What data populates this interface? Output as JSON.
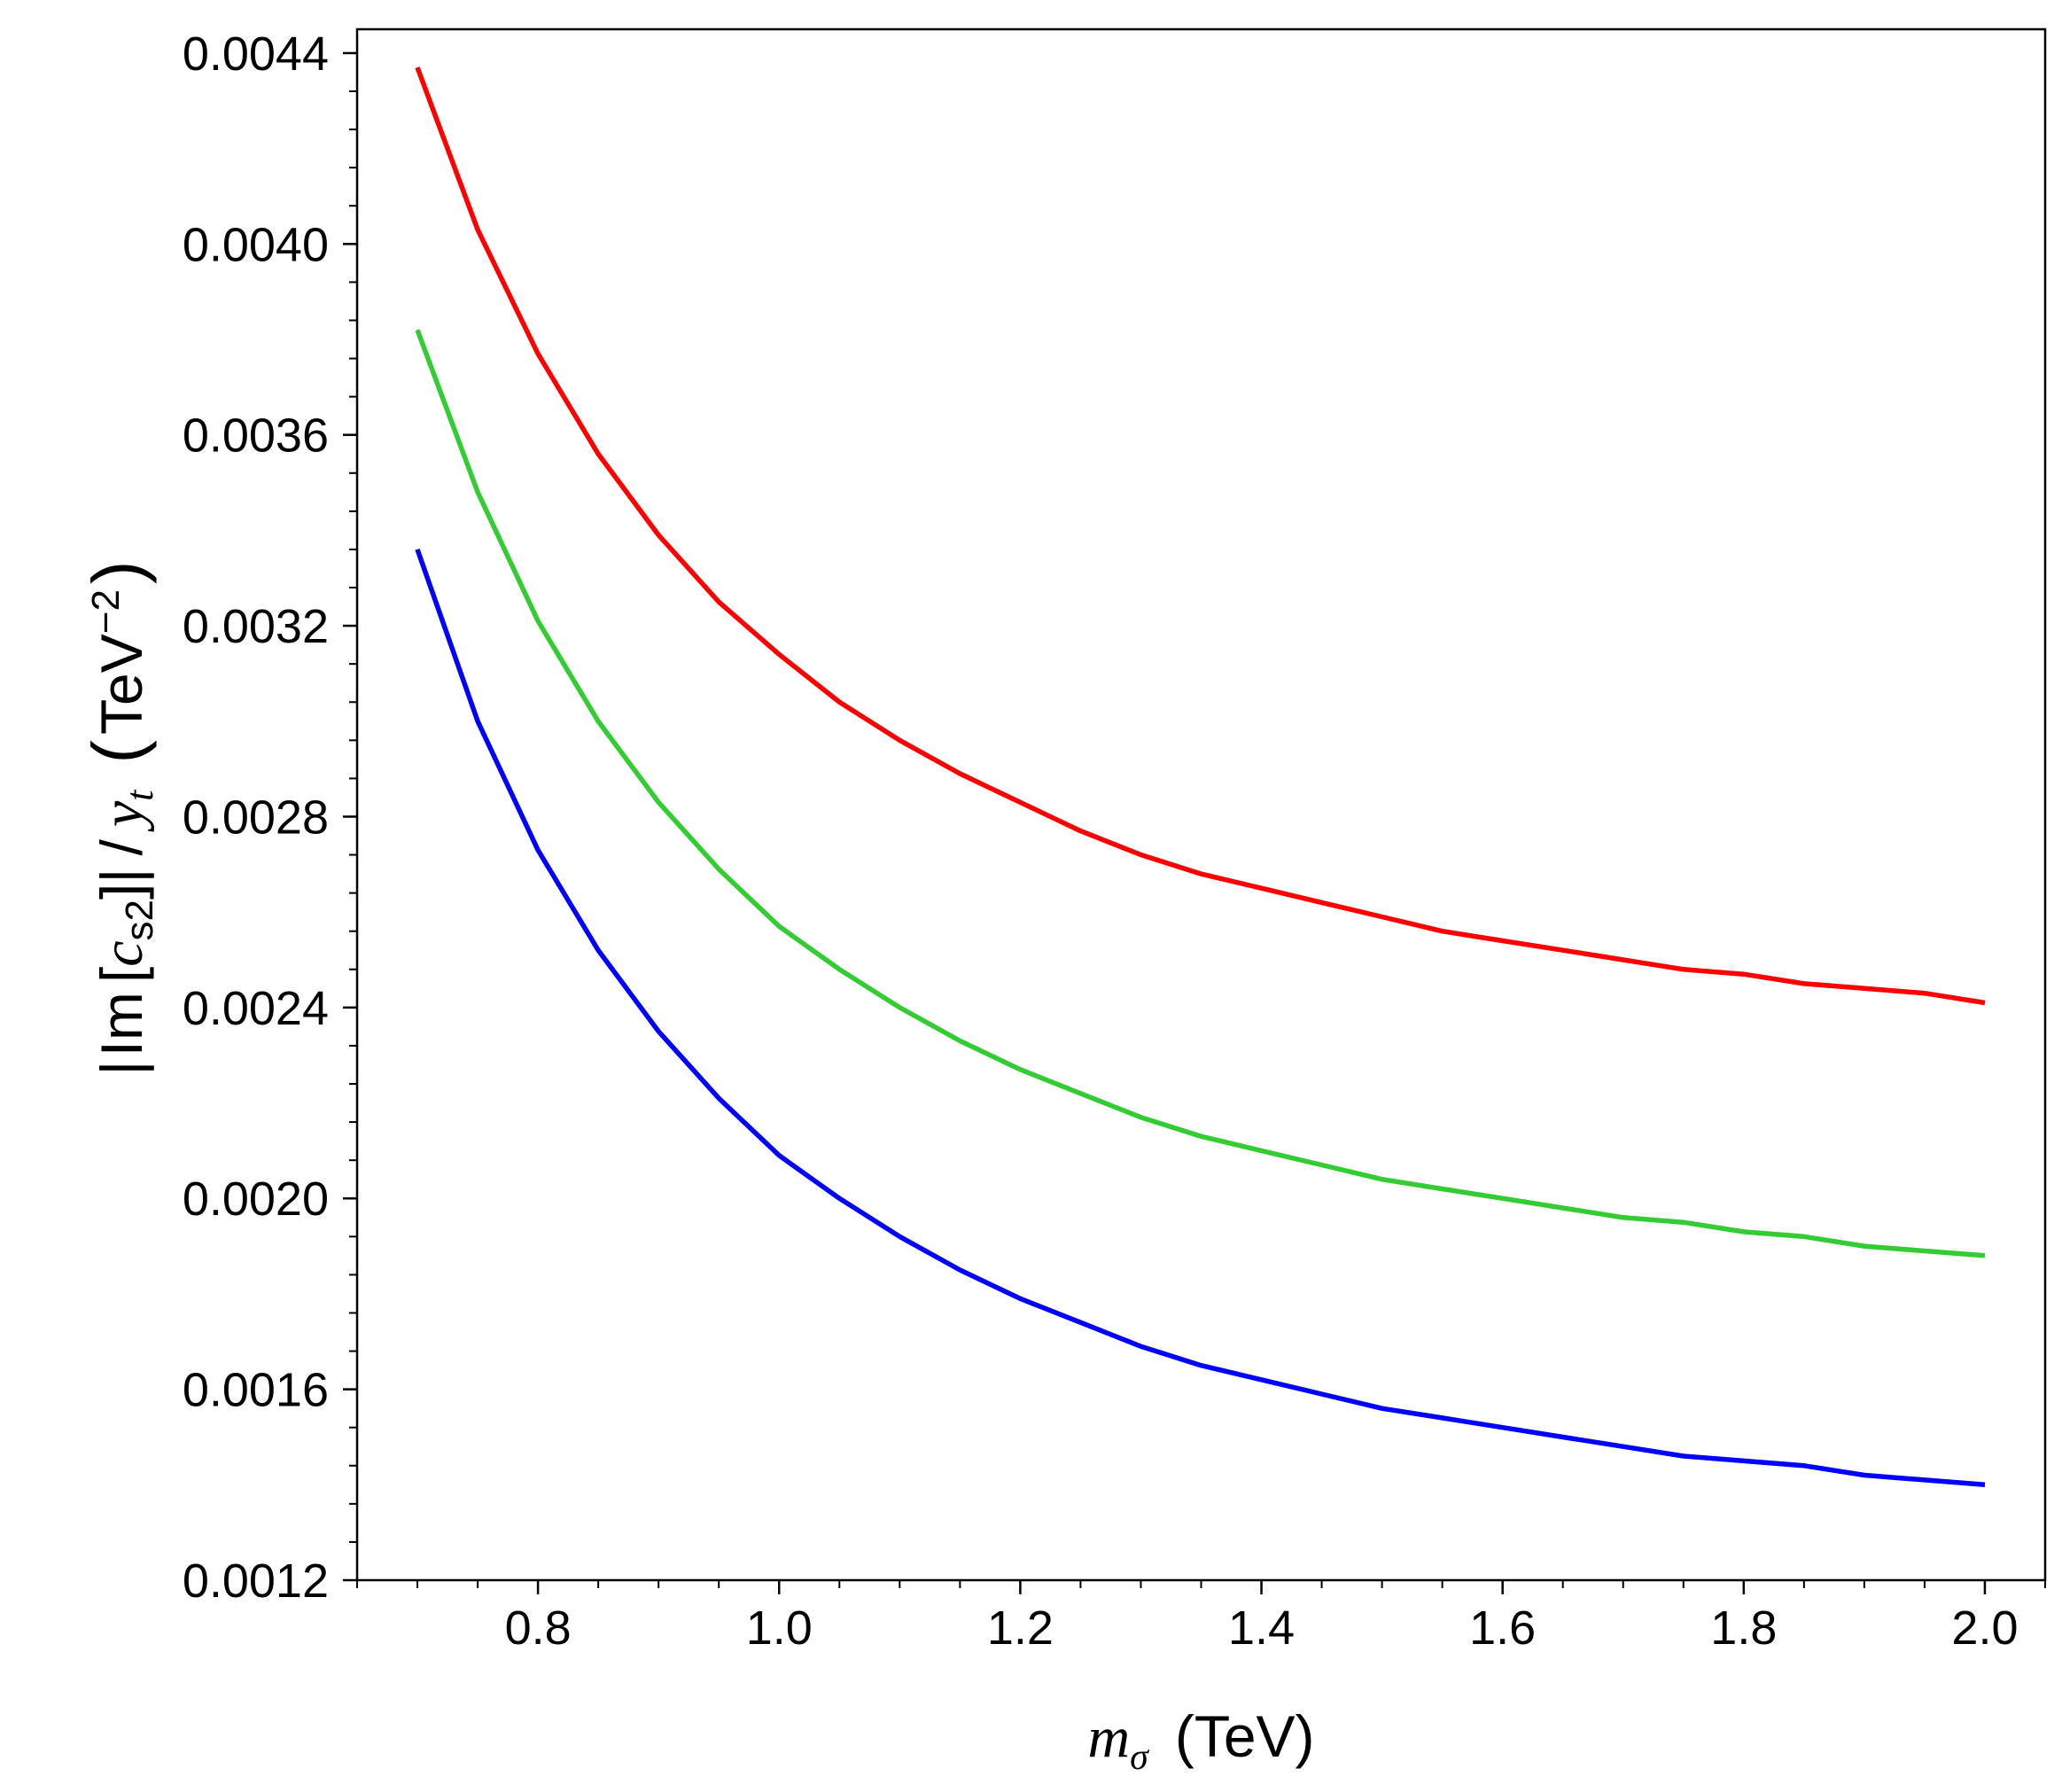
{
  "chart_data": {
    "type": "line",
    "title": "",
    "xlabel": {
      "symbol": "m",
      "subscript": "σ",
      "unit": "(TeV)"
    },
    "ylabel": {
      "left_bar": "|",
      "im": "Im",
      "open_bracket": "[",
      "c": "c",
      "c_subscript": "s2",
      "close_bracket": "]",
      "right_bar": "|",
      "slash": "/",
      "y": "y",
      "y_subscript": "t",
      "open_paren": "(",
      "unit": "TeV",
      "unit_exponent": "−2",
      "close_paren": ")"
    },
    "xlim": [
      0.65,
      2.05
    ],
    "ylim": [
      0.0012,
      0.00445
    ],
    "x_ticks": [
      0.8,
      1.0,
      1.2,
      1.4,
      1.6,
      1.8,
      2.0
    ],
    "x_tick_labels": [
      "0.8",
      "1.0",
      "1.2",
      "1.4",
      "1.6",
      "1.8",
      "2.0"
    ],
    "y_ticks": [
      0.0012,
      0.0016,
      0.002,
      0.0024,
      0.0028,
      0.0032,
      0.0036,
      0.004,
      0.0044
    ],
    "y_tick_labels": [
      "0.0012",
      "0.0016",
      "0.0020",
      "0.0024",
      "0.0028",
      "0.0032",
      "0.0036",
      "0.0040",
      "0.0044"
    ],
    "x_minor_step": 0.05,
    "y_minor_step": 8e-05,
    "grid": false,
    "x": [
      0.7,
      0.75,
      0.8,
      0.85,
      0.9,
      0.95,
      1.0,
      1.05,
      1.1,
      1.15,
      1.2,
      1.25,
      1.3,
      1.35,
      1.4,
      1.45,
      1.5,
      1.55,
      1.6,
      1.65,
      1.7,
      1.75,
      1.8,
      1.85,
      1.9,
      1.95,
      2.0
    ],
    "series": [
      {
        "name": "red",
        "color": "#ff0000",
        "values": [
          0.00437,
          0.00403,
          0.00377,
          0.00356,
          0.00339,
          0.00325,
          0.00314,
          0.00304,
          0.00296,
          0.00289,
          0.00283,
          0.00277,
          0.00272,
          0.00268,
          0.00265,
          0.00262,
          0.00259,
          0.00256,
          0.00254,
          0.00252,
          0.0025,
          0.00248,
          0.00247,
          0.00245,
          0.00244,
          0.00243,
          0.00241
        ]
      },
      {
        "name": "green",
        "color": "#33cc33",
        "values": [
          0.00382,
          0.00348,
          0.00321,
          0.003,
          0.00283,
          0.00269,
          0.00257,
          0.00248,
          0.0024,
          0.00233,
          0.00227,
          0.00222,
          0.00217,
          0.00213,
          0.0021,
          0.00207,
          0.00204,
          0.00202,
          0.002,
          0.00198,
          0.00196,
          0.00195,
          0.00193,
          0.00192,
          0.0019,
          0.00189,
          0.00188
        ]
      },
      {
        "name": "blue",
        "color": "#0000ff",
        "values": [
          0.00336,
          0.003,
          0.00273,
          0.00252,
          0.00235,
          0.00221,
          0.00209,
          0.002,
          0.00192,
          0.00185,
          0.00179,
          0.00174,
          0.00169,
          0.00165,
          0.00162,
          0.00159,
          0.00156,
          0.00154,
          0.00152,
          0.0015,
          0.00148,
          0.00146,
          0.00145,
          0.00144,
          0.00142,
          0.00141,
          0.0014
        ]
      }
    ]
  }
}
